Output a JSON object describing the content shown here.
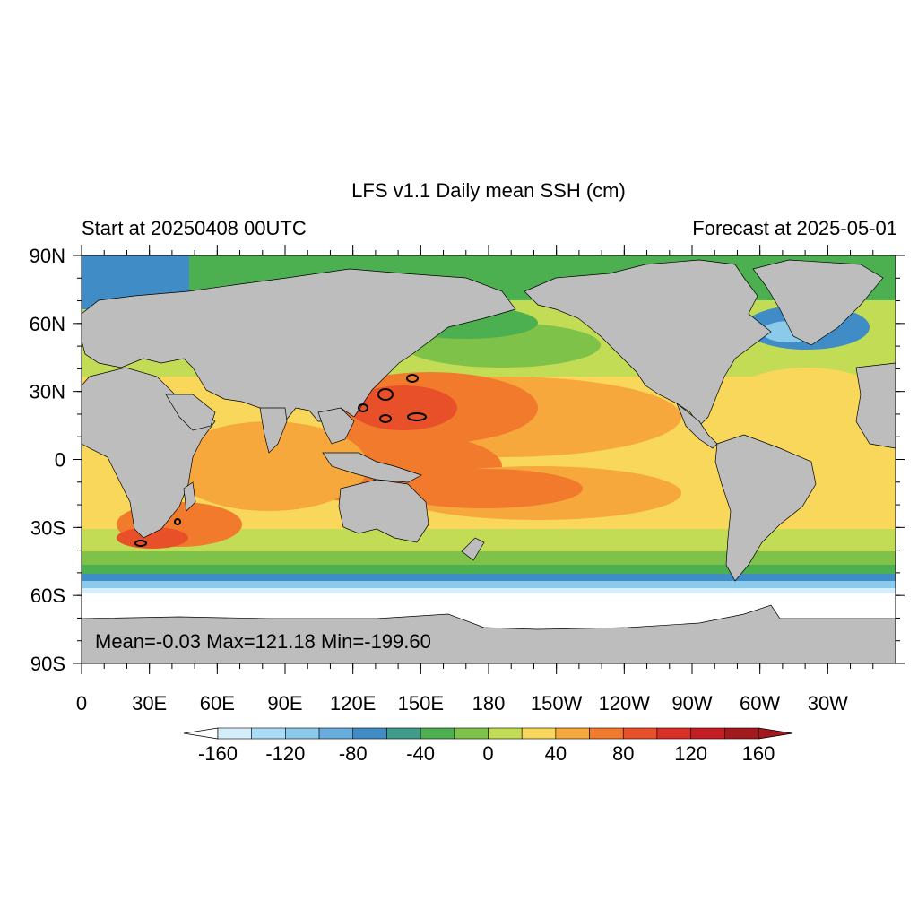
{
  "title": "LFS v1.1 Daily mean SSH (cm)",
  "left_subtitle": "Start at 20250408 00UTC",
  "right_subtitle": "Forecast at 2025-05-01",
  "stats": "Mean=-0.03  Max=121.18  Min=-199.60",
  "lat_labels": [
    "90N",
    "60N",
    "30N",
    "0",
    "30S",
    "60S",
    "90S"
  ],
  "lon_labels": [
    "0",
    "30E",
    "60E",
    "90E",
    "120E",
    "150E",
    "180",
    "150W",
    "120W",
    "90W",
    "60W",
    "30W"
  ],
  "colorbar": {
    "labels": [
      "-160",
      "-120",
      "-80",
      "-40",
      "0",
      "40",
      "80",
      "120",
      "160"
    ],
    "colors": [
      "#d6eefb",
      "#a9dcf5",
      "#8ccaec",
      "#67aedf",
      "#3f8cc6",
      "#3f9b8a",
      "#4caf50",
      "#7ec24a",
      "#c3dc55",
      "#f8d75a",
      "#f6a83c",
      "#f27a2c",
      "#e8502a",
      "#d92f27",
      "#c41e24",
      "#a3191d"
    ],
    "under_color": "#ffffff",
    "over_color": "#a3191d"
  },
  "colors": {
    "land": "#bdbdbd",
    "ocean_base": "#c3dc55"
  }
}
